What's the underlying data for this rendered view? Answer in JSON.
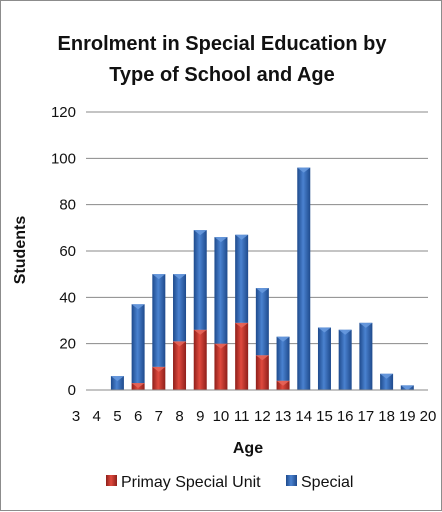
{
  "chart_data": {
    "type": "bar",
    "stacked": true,
    "title_lines": [
      "Enrolment in Special Education by",
      "Type of School and Age"
    ],
    "xlabel": "Age",
    "ylabel": "Students",
    "categories": [
      3,
      4,
      5,
      6,
      7,
      8,
      9,
      10,
      11,
      12,
      13,
      14,
      15,
      16,
      17,
      18,
      19,
      20
    ],
    "x_tick_labels": [
      "3",
      "4",
      "5",
      "6",
      "7",
      "8",
      "9",
      "10",
      "11",
      "12",
      "13",
      "14",
      "15",
      "16",
      "17",
      "18",
      "19",
      "20"
    ],
    "y_ticks": [
      0,
      20,
      40,
      60,
      80,
      100,
      120
    ],
    "ylim": [
      0,
      120
    ],
    "grid": true,
    "legend_position": "bottom",
    "series": [
      {
        "name": "Primay Special Unit",
        "color": "#c0392b",
        "values": [
          0,
          0,
          0,
          3,
          10,
          21,
          26,
          20,
          29,
          15,
          4,
          0,
          0,
          0,
          0,
          0,
          0,
          0
        ]
      },
      {
        "name": "Special",
        "color": "#2e62b0",
        "values": [
          0,
          0,
          6,
          34,
          40,
          29,
          43,
          46,
          38,
          29,
          19,
          96,
          27,
          26,
          29,
          7,
          2,
          0
        ]
      }
    ]
  }
}
